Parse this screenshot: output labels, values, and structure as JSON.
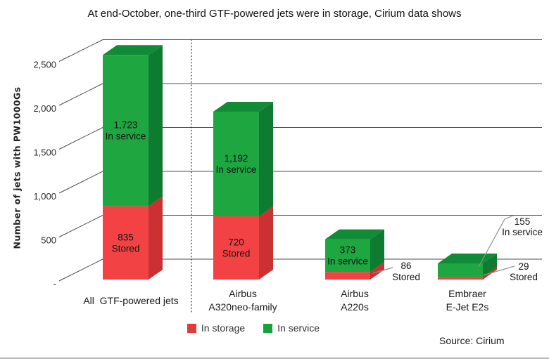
{
  "source": "Source: Cirium",
  "chart_data": {
    "type": "bar",
    "stacked": true,
    "projection": "3d",
    "title": "At end-October, one-third GTF-powered jets were in storage, Cirium data shows",
    "ylabel": "Number of jets with PW1000Gs",
    "categories": [
      "All  GTF-powered jets",
      "Airbus\nA320neo-family",
      "Airbus\nA220s",
      "Embraer\nE-Jet E2s"
    ],
    "series": [
      {
        "name": "In storage",
        "label_in_chart": "Stored",
        "values": [
          835,
          720,
          86,
          29
        ],
        "colors": {
          "front": "#F24244",
          "side": "#CB3133",
          "top": "#DC3638",
          "legend": "#E23B3C"
        }
      },
      {
        "name": "In service",
        "label_in_chart": "In service",
        "values": [
          1723,
          1192,
          373,
          155
        ],
        "colors": {
          "front": "#1EA641",
          "side": "#0D7C30",
          "top": "#128B38",
          "legend": "#17A238"
        }
      }
    ],
    "yticks": [
      2500,
      2000,
      1500,
      1000,
      500,
      0
    ],
    "ytick_labels": [
      "2,500",
      "2,000",
      "1,500",
      "1,000",
      "500",
      "-"
    ],
    "ylim": [
      0,
      2700
    ],
    "grid": true,
    "legend_position": "bottom",
    "separator_after_first_category": true
  }
}
